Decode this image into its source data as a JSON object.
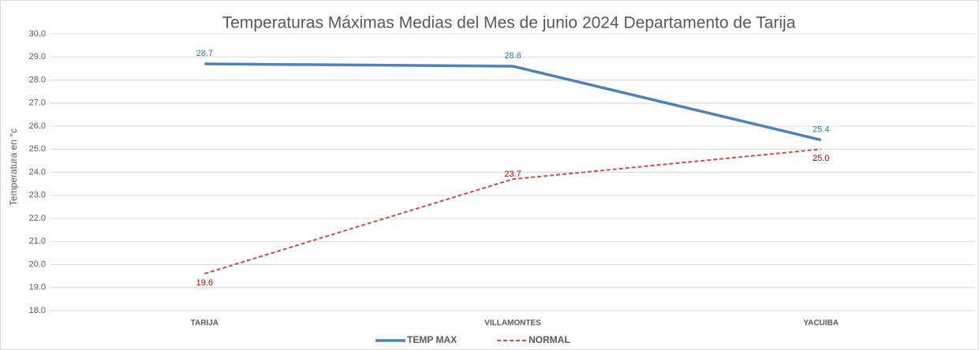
{
  "chart_data": {
    "type": "line",
    "title": "Temperaturas Máximas Medias del Mes de junio 2024 Departamento de Tarija",
    "ylabel": "Temperatura en °c",
    "categories": [
      "TARIJA",
      "VILLAMONTES",
      "YACUIBA"
    ],
    "series": [
      {
        "name": "TEMP MAX",
        "color": "#4f81bd",
        "dash": false,
        "label_color": "#2e75b6",
        "values": [
          28.7,
          28.6,
          25.4
        ]
      },
      {
        "name": "NORMAL",
        "color": "#c0504d",
        "dash": true,
        "label_color": "#c00000",
        "values": [
          19.6,
          23.7,
          25.0
        ],
        "value_labels": [
          "19.6",
          "23.7",
          "25.0"
        ]
      }
    ],
    "ylim": [
      18,
      30
    ],
    "yticks": [
      {
        "value": 18,
        "label": "18.0"
      },
      {
        "value": 19,
        "label": "19.0"
      },
      {
        "value": 20,
        "label": "20.0"
      },
      {
        "value": 21,
        "label": "21.0"
      },
      {
        "value": 22,
        "label": "22.0"
      },
      {
        "value": 23,
        "label": "23.0"
      },
      {
        "value": 24,
        "label": "24.0"
      },
      {
        "value": 25,
        "label": "25.0"
      },
      {
        "value": 26,
        "label": "26.0"
      },
      {
        "value": 27,
        "label": "27.0"
      },
      {
        "value": 28,
        "label": "28.0"
      },
      {
        "value": 29,
        "label": "29.0"
      },
      {
        "value": 30,
        "label": "30.0"
      }
    ],
    "grid": true,
    "legend": "bottom"
  }
}
